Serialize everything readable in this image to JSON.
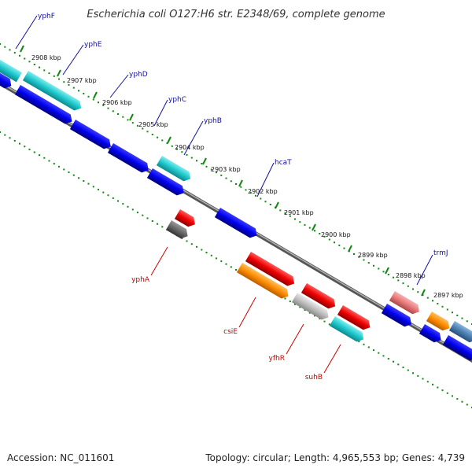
{
  "header": {
    "title": "Escherichia coli O127:H6 str. E2348/69, complete genome"
  },
  "footer": {
    "accession": "Accession: NC_011601",
    "summary": "Topology: circular; Length: 4,965,553 bp; Genes: 4,739"
  },
  "axis": {
    "unit": "kbp",
    "ticks": [
      {
        "label": "2908 kbp"
      },
      {
        "label": "2907 kbp"
      },
      {
        "label": "2906 kbp"
      },
      {
        "label": "2905 kbp"
      },
      {
        "label": "2904 kbp"
      },
      {
        "label": "2903 kbp"
      },
      {
        "label": "2902 kbp"
      },
      {
        "label": "2901 kbp"
      },
      {
        "label": "2900 kbp"
      },
      {
        "label": "2899 kbp"
      },
      {
        "label": "2898 kbp"
      },
      {
        "label": "2897 kbp"
      }
    ]
  },
  "labels": {
    "top": [
      {
        "text": "yphF"
      },
      {
        "text": "yphE"
      },
      {
        "text": "yphD"
      },
      {
        "text": "yphC"
      },
      {
        "text": "yphB"
      },
      {
        "text": "hcaT"
      },
      {
        "text": "trmJ"
      }
    ],
    "bottom": [
      {
        "text": "yphA"
      },
      {
        "text": "csiE"
      },
      {
        "text": "yfhR"
      },
      {
        "text": "suhB"
      }
    ]
  },
  "colors": {
    "blue": "#0000ee",
    "cyan": "#1ec8cc",
    "red": "#ee0000",
    "orange": "#ff8c00",
    "gray": "#666666",
    "lightgray": "#bdbdbd",
    "pink": "#e87878",
    "steel": "#4a7fb0",
    "label_top": "#1010a0",
    "label_bottom": "#cc0000",
    "dots": "#118811",
    "backbone": "#888888"
  }
}
